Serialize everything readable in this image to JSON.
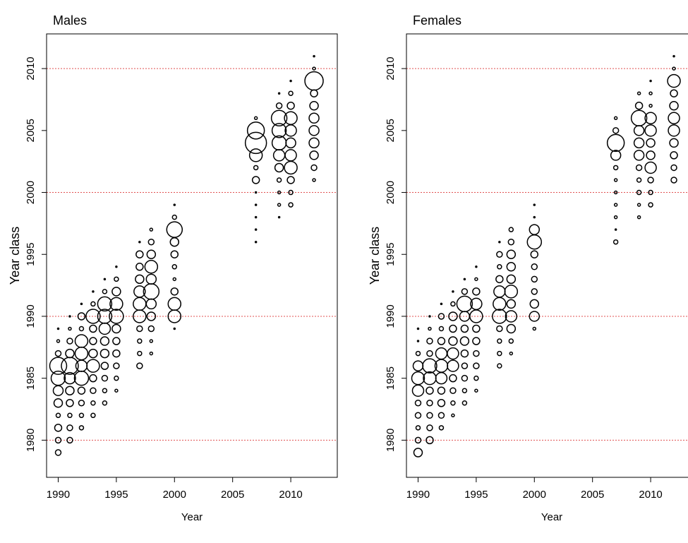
{
  "chart_data": [
    {
      "type": "bubble",
      "title": "Males",
      "x_label": "Year",
      "y_label": "Year class",
      "xlim": [
        1989,
        2014
      ],
      "ylim": [
        1977,
        2012.8
      ],
      "xticks": [
        1990,
        1995,
        2000,
        2005,
        2010
      ],
      "yticks": [
        1980,
        1985,
        1990,
        1995,
        2000,
        2005,
        2010
      ],
      "ref_lines": [
        1980,
        1990,
        2000,
        2010
      ],
      "ref_color": "#e05050",
      "color": "#000000",
      "columns": [
        {
          "x": 1990,
          "y": [
            1979,
            1980,
            1981,
            1982,
            1983,
            1984,
            1985,
            1986,
            1987,
            1988,
            1989
          ],
          "sizes": [
            4,
            4,
            5,
            3,
            6,
            7,
            10,
            12,
            4,
            2,
            1
          ]
        },
        {
          "x": 1991,
          "y": [
            1980,
            1981,
            1982,
            1983,
            1984,
            1985,
            1986,
            1987,
            1988,
            1989,
            1990
          ],
          "sizes": [
            4,
            4,
            3,
            5,
            6,
            8,
            12,
            6,
            4,
            2,
            1
          ]
        },
        {
          "x": 1992,
          "y": [
            1981,
            1982,
            1983,
            1984,
            1985,
            1986,
            1987,
            1988,
            1989,
            1990,
            1991
          ],
          "sizes": [
            3,
            3,
            4,
            5,
            10,
            8,
            9,
            9,
            3,
            5,
            1
          ]
        },
        {
          "x": 1993,
          "y": [
            1982,
            1983,
            1984,
            1985,
            1986,
            1987,
            1988,
            1989,
            1990,
            1991,
            1992
          ],
          "sizes": [
            3,
            3,
            4,
            5,
            9,
            6,
            5,
            5,
            10,
            3,
            1
          ]
        },
        {
          "x": 1994,
          "y": [
            1983,
            1984,
            1985,
            1986,
            1987,
            1988,
            1989,
            1990,
            1991,
            1992,
            1993
          ],
          "sizes": [
            3,
            3,
            4,
            5,
            6,
            6,
            8,
            10,
            10,
            3,
            1
          ]
        },
        {
          "x": 1995,
          "y": [
            1984,
            1985,
            1986,
            1987,
            1988,
            1989,
            1990,
            1991,
            1992,
            1993,
            1994
          ],
          "sizes": [
            2,
            3,
            4,
            5,
            5,
            6,
            10,
            9,
            6,
            3,
            1
          ]
        },
        {
          "x": 1997,
          "y": [
            1986,
            1987,
            1988,
            1989,
            1990,
            1991,
            1992,
            1993,
            1994,
            1995,
            1996
          ],
          "sizes": [
            4,
            3,
            3,
            4,
            9,
            9,
            8,
            6,
            5,
            5,
            1
          ]
        },
        {
          "x": 1998,
          "y": [
            1987,
            1988,
            1989,
            1990,
            1991,
            1992,
            1993,
            1994,
            1995,
            1996,
            1997
          ],
          "sizes": [
            2,
            2,
            4,
            6,
            7,
            11,
            7,
            9,
            6,
            4,
            2
          ]
        },
        {
          "x": 2000,
          "y": [
            1989,
            1990,
            1991,
            1992,
            1993,
            1994,
            1995,
            1996,
            1997,
            1998,
            1999
          ],
          "sizes": [
            1,
            9,
            9,
            5,
            2,
            3,
            5,
            6,
            11,
            3,
            1
          ]
        },
        {
          "x": 2007,
          "y": [
            1996,
            1997,
            1998,
            1999,
            2000,
            2001,
            2002,
            2003,
            2004,
            2005,
            2006
          ],
          "sizes": [
            1,
            1,
            1,
            1,
            1,
            5,
            3,
            9,
            15,
            12,
            2
          ]
        },
        {
          "x": 2009,
          "y": [
            1998,
            1999,
            2000,
            2001,
            2002,
            2003,
            2004,
            2005,
            2006,
            2007,
            2008
          ],
          "sizes": [
            1,
            2,
            2,
            3,
            6,
            8,
            10,
            10,
            11,
            4,
            1
          ]
        },
        {
          "x": 2010,
          "y": [
            1999,
            2000,
            2001,
            2002,
            2003,
            2004,
            2005,
            2006,
            2007,
            2008,
            2009
          ],
          "sizes": [
            3,
            3,
            5,
            9,
            8,
            7,
            8,
            9,
            5,
            3,
            1
          ]
        },
        {
          "x": 2012,
          "y": [
            2001,
            2002,
            2003,
            2004,
            2005,
            2006,
            2007,
            2008,
            2009,
            2010,
            2011
          ],
          "sizes": [
            2,
            4,
            6,
            7,
            7,
            7,
            6,
            5,
            13,
            2,
            1
          ]
        }
      ]
    },
    {
      "type": "bubble",
      "title": "Females",
      "x_label": "Year",
      "y_label": "Year class",
      "xlim": [
        1989,
        2014
      ],
      "ylim": [
        1977,
        2012.8
      ],
      "xticks": [
        1990,
        1995,
        2000,
        2005,
        2010
      ],
      "yticks": [
        1980,
        1985,
        1990,
        1995,
        2000,
        2005,
        2010
      ],
      "ref_lines": [
        1980,
        1990,
        2000,
        2010
      ],
      "ref_color": "#e05050",
      "color": "#000000",
      "columns": [
        {
          "x": 1990,
          "y": [
            1979,
            1980,
            1981,
            1982,
            1983,
            1984,
            1985,
            1986,
            1987,
            1988,
            1989
          ],
          "sizes": [
            6,
            4,
            3,
            4,
            4,
            8,
            9,
            7,
            3,
            1,
            1
          ]
        },
        {
          "x": 1991,
          "y": [
            1980,
            1981,
            1982,
            1983,
            1984,
            1985,
            1986,
            1987,
            1988,
            1989,
            1990
          ],
          "sizes": [
            5,
            4,
            4,
            4,
            5,
            9,
            10,
            4,
            4,
            2,
            1
          ]
        },
        {
          "x": 1992,
          "y": [
            1981,
            1982,
            1983,
            1984,
            1985,
            1986,
            1987,
            1988,
            1989,
            1990,
            1991
          ],
          "sizes": [
            3,
            4,
            5,
            5,
            8,
            9,
            8,
            5,
            3,
            4,
            1
          ]
        },
        {
          "x": 1993,
          "y": [
            1982,
            1983,
            1984,
            1985,
            1986,
            1987,
            1988,
            1989,
            1990,
            1991,
            1992
          ],
          "sizes": [
            2,
            3,
            4,
            5,
            8,
            8,
            6,
            5,
            6,
            3,
            1
          ]
        },
        {
          "x": 1994,
          "y": [
            1983,
            1984,
            1985,
            1986,
            1987,
            1988,
            1989,
            1990,
            1991,
            1992,
            1993
          ],
          "sizes": [
            3,
            3,
            4,
            4,
            5,
            6,
            5,
            7,
            11,
            4,
            1
          ]
        },
        {
          "x": 1995,
          "y": [
            1984,
            1985,
            1986,
            1987,
            1988,
            1989,
            1990,
            1991,
            1992,
            1993,
            1994
          ],
          "sizes": [
            2,
            3,
            4,
            4,
            5,
            5,
            9,
            8,
            5,
            2,
            1
          ]
        },
        {
          "x": 1997,
          "y": [
            1986,
            1987,
            1988,
            1989,
            1990,
            1991,
            1992,
            1993,
            1994,
            1995,
            1996
          ],
          "sizes": [
            3,
            3,
            3,
            4,
            10,
            9,
            8,
            5,
            3,
            4,
            1
          ]
        },
        {
          "x": 1998,
          "y": [
            1987,
            1988,
            1989,
            1990,
            1991,
            1992,
            1993,
            1994,
            1995,
            1996,
            1997
          ],
          "sizes": [
            2,
            3,
            6,
            8,
            6,
            9,
            6,
            6,
            6,
            4,
            3
          ]
        },
        {
          "x": 2000,
          "y": [
            1989,
            1990,
            1991,
            1992,
            1993,
            1994,
            1995,
            1996,
            1997,
            1998,
            1999
          ],
          "sizes": [
            2,
            7,
            6,
            4,
            4,
            4,
            5,
            10,
            7,
            1,
            1
          ]
        },
        {
          "x": 2007,
          "y": [
            1996,
            1997,
            1998,
            1999,
            2000,
            2001,
            2002,
            2003,
            2004,
            2005,
            2006
          ],
          "sizes": [
            3,
            1,
            2,
            2,
            2,
            2,
            3,
            7,
            12,
            4,
            2
          ]
        },
        {
          "x": 2009,
          "y": [
            1998,
            1999,
            2000,
            2001,
            2002,
            2003,
            2004,
            2005,
            2006,
            2007,
            2008
          ],
          "sizes": [
            2,
            2,
            3,
            3,
            4,
            7,
            7,
            7,
            11,
            5,
            2
          ]
        },
        {
          "x": 2010,
          "y": [
            1999,
            2000,
            2001,
            2002,
            2003,
            2004,
            2005,
            2006,
            2007,
            2008,
            2009
          ],
          "sizes": [
            3,
            3,
            4,
            8,
            6,
            6,
            8,
            8,
            2,
            2,
            1
          ]
        },
        {
          "x": 2012,
          "y": [
            2001,
            2002,
            2003,
            2004,
            2005,
            2006,
            2007,
            2008,
            2009,
            2010,
            2011
          ],
          "sizes": [
            4,
            4,
            5,
            6,
            8,
            8,
            6,
            5,
            9,
            2,
            1
          ]
        }
      ]
    }
  ]
}
